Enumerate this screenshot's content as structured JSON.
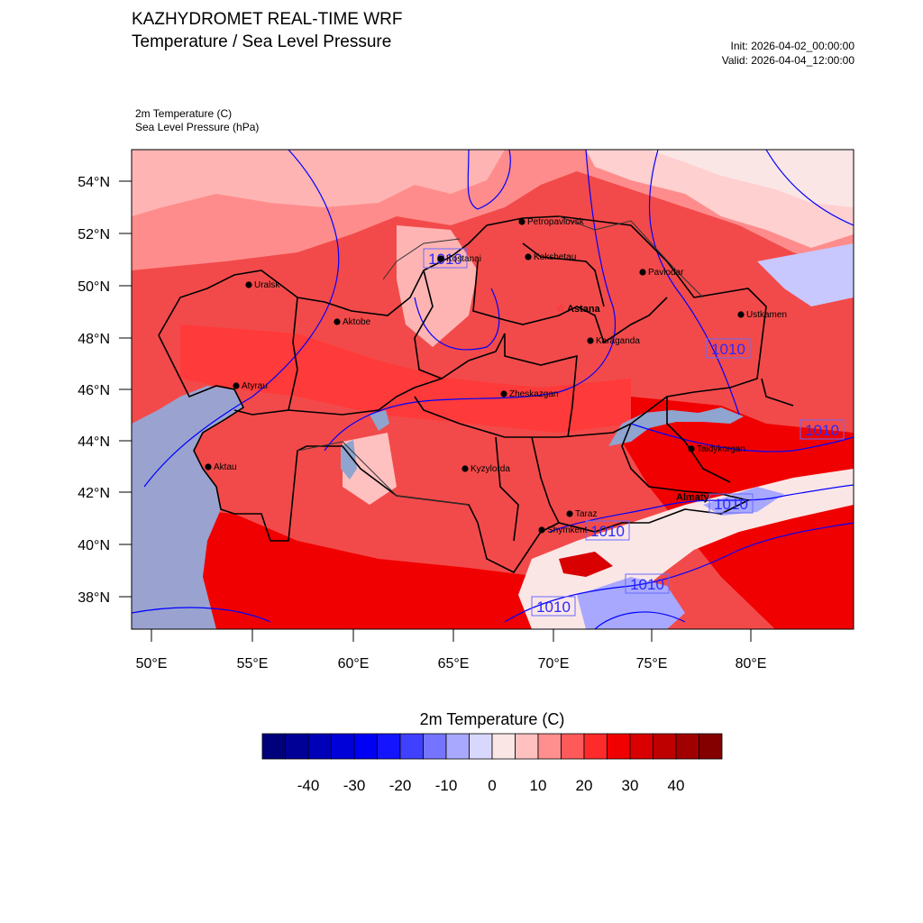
{
  "header": {
    "title_line1": "KAZHYDROMET REAL-TIME WRF",
    "title_line2": "Temperature / Sea Level Pressure",
    "init": "Init: 2026-04-02_00:00:00",
    "valid": "Valid: 2026-04-04_12:00:00",
    "field1": "2m Temperature   (C)",
    "field2": "Sea Level Pressure   (hPa)"
  },
  "map": {
    "lat_labels": [
      "54°N",
      "52°N",
      "50°N",
      "48°N",
      "46°N",
      "44°N",
      "42°N",
      "40°N",
      "38°N"
    ],
    "lon_labels": [
      "50°E",
      "55°E",
      "60°E",
      "65°E",
      "70°E",
      "75°E",
      "80°E"
    ],
    "cities": [
      {
        "name": "Petropavlovsk"
      },
      {
        "name": "Kostanai"
      },
      {
        "name": "Kokshetau"
      },
      {
        "name": "Pavlodar"
      },
      {
        "name": "Uralsk"
      },
      {
        "name": "Astana"
      },
      {
        "name": "Aktobe"
      },
      {
        "name": "Ustkamen"
      },
      {
        "name": "Karaganda"
      },
      {
        "name": "Atyrau"
      },
      {
        "name": "Zheskazgan"
      },
      {
        "name": "Taldykorgan"
      },
      {
        "name": "Aktau"
      },
      {
        "name": "Kyzylorda"
      },
      {
        "name": "Almaty"
      },
      {
        "name": "Taraz"
      },
      {
        "name": "Shymkent"
      }
    ],
    "isobar_labels": [
      "1010",
      "1010",
      "1010",
      "1010",
      "1010",
      "1010",
      "1010"
    ]
  },
  "colorbar": {
    "title": "2m Temperature  (C)",
    "tick_labels": [
      "-40",
      "-30",
      "-20",
      "-10",
      "0",
      "10",
      "20",
      "30",
      "40"
    ],
    "colors": [
      "#00007a",
      "#000096",
      "#0000b8",
      "#0000d8",
      "#0000f5",
      "#1414ff",
      "#4040ff",
      "#7474ff",
      "#a8a8ff",
      "#d8d8ff",
      "#fbe6e6",
      "#ffc0c0",
      "#ff8e8e",
      "#ff5a5a",
      "#ff2a2a",
      "#f00000",
      "#d80000",
      "#bf0000",
      "#a20000",
      "#840000"
    ]
  },
  "colors": {
    "map_base": "#f24a4a",
    "caspian": "#9aa3cf",
    "isobar": "#0000ff",
    "border": "#000000"
  }
}
